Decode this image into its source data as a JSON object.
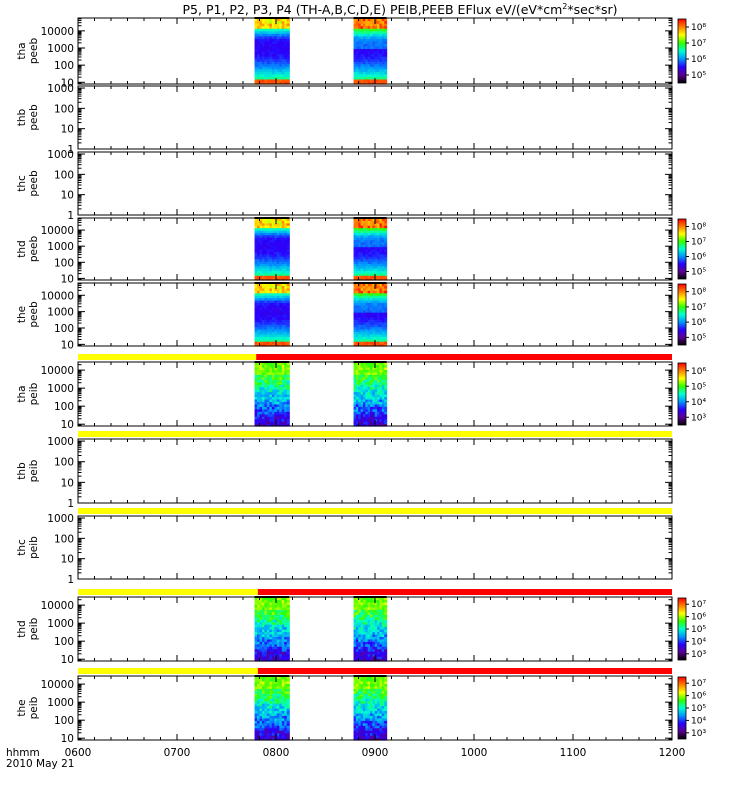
{
  "title": {
    "main": "P5, P1, P2, P3, P4 (TH-A,B,C,D,E) PEIB,PEEB EFlux eV/(eV*cm",
    "sup": "2",
    "tail": "*sec*sr)"
  },
  "footer": {
    "axis_name": "hhmm",
    "date": "2010 May 21"
  },
  "chart_data": {
    "type": "heatmap",
    "title": "P5, P1, P2, P3, P4 (TH-A,B,C,D,E) PEIB,PEEB EFlux eV/(eV*cm^2*sec*sr)",
    "x": {
      "ticks": [
        "0600",
        "0700",
        "0800",
        "0900",
        "1000",
        "1100",
        "1200"
      ],
      "range": [
        "0600",
        "1200"
      ],
      "label": "hhmm",
      "date": "2010 May 21"
    },
    "bursts": [
      {
        "start": "0747",
        "end": "0808"
      },
      {
        "start": "0847",
        "end": "0907"
      }
    ],
    "panels": [
      {
        "id": "tha_peeb",
        "label_lines": [
          "tha",
          "peeb"
        ],
        "y_ticks": [
          "10",
          "100",
          "1000",
          "10000"
        ],
        "y_log_range": [
          0.9,
          4.75
        ],
        "has_data": true,
        "colorbar": [
          "10⁵",
          "10⁶",
          "10⁷",
          "10⁸"
        ],
        "palette": "electron"
      },
      {
        "id": "thb_peeb",
        "label_lines": [
          "thb",
          "peeb"
        ],
        "y_ticks": [
          "1",
          "10",
          "100",
          "1000"
        ],
        "y_log_range": [
          0,
          3.1
        ],
        "has_data": false,
        "colorbar": [],
        "palette": "none"
      },
      {
        "id": "thc_peeb",
        "label_lines": [
          "thc",
          "peeb"
        ],
        "y_ticks": [
          "1",
          "10",
          "100",
          "1000"
        ],
        "y_log_range": [
          0,
          3.1
        ],
        "has_data": false,
        "colorbar": [],
        "palette": "none"
      },
      {
        "id": "thd_peeb",
        "label_lines": [
          "thd",
          "peeb"
        ],
        "y_ticks": [
          "10",
          "100",
          "1000",
          "10000"
        ],
        "y_log_range": [
          0.9,
          4.75
        ],
        "has_data": true,
        "colorbar": [
          "10⁵",
          "10⁶",
          "10⁷",
          "10⁸"
        ],
        "palette": "electron"
      },
      {
        "id": "the_peeb",
        "label_lines": [
          "the",
          "peeb"
        ],
        "y_ticks": [
          "10",
          "100",
          "1000",
          "10000"
        ],
        "y_log_range": [
          0.9,
          4.75
        ],
        "has_data": true,
        "colorbar": [
          "10⁵",
          "10⁶",
          "10⁷",
          "10⁸"
        ],
        "palette": "electron"
      },
      {
        "id": "tha_peib",
        "label_lines": [
          "tha",
          "peib"
        ],
        "y_ticks": [
          "10",
          "100",
          "1000",
          "10000"
        ],
        "y_log_range": [
          0.9,
          4.45
        ],
        "has_data": true,
        "colorbar": [
          "10³",
          "10⁴",
          "10⁵",
          "10⁶"
        ],
        "palette": "ion"
      },
      {
        "id": "thb_peib",
        "label_lines": [
          "thb",
          "peib"
        ],
        "y_ticks": [
          "1",
          "10",
          "100",
          "1000"
        ],
        "y_log_range": [
          0,
          3.1
        ],
        "has_data": false,
        "colorbar": [],
        "palette": "none"
      },
      {
        "id": "thc_peib",
        "label_lines": [
          "thc",
          "peib"
        ],
        "y_ticks": [
          "1",
          "10",
          "100",
          "1000"
        ],
        "y_log_range": [
          0,
          3.1
        ],
        "has_data": false,
        "colorbar": [],
        "palette": "none"
      },
      {
        "id": "thd_peib",
        "label_lines": [
          "thd",
          "peib"
        ],
        "y_ticks": [
          "10",
          "100",
          "1000",
          "10000"
        ],
        "y_log_range": [
          0.9,
          4.45
        ],
        "has_data": true,
        "colorbar": [
          "10³",
          "10⁴",
          "10⁵",
          "10⁶",
          "10⁷"
        ],
        "palette": "ion"
      },
      {
        "id": "the_peib",
        "label_lines": [
          "the",
          "peib"
        ],
        "y_ticks": [
          "10",
          "100",
          "1000",
          "10000"
        ],
        "y_log_range": [
          0.9,
          4.45
        ],
        "has_data": true,
        "colorbar": [
          "10³",
          "10⁴",
          "10⁵",
          "10⁶",
          "10⁷"
        ],
        "palette": "ion"
      }
    ],
    "mode_bars": [
      {
        "above_panel": "tha_peib",
        "segments": [
          {
            "from": "0600",
            "to": "0748",
            "color": "#ffff00"
          },
          {
            "from": "0748",
            "to": "1200",
            "color": "#ff0000"
          }
        ]
      },
      {
        "above_panel": "thb_peib",
        "segments": [
          {
            "from": "0600",
            "to": "1200",
            "color": "#ffff00"
          }
        ]
      },
      {
        "above_panel": "thc_peib",
        "segments": [
          {
            "from": "0600",
            "to": "1200",
            "color": "#ffff00"
          }
        ]
      },
      {
        "above_panel": "thd_peib",
        "segments": [
          {
            "from": "0600",
            "to": "0749",
            "color": "#ffff00"
          },
          {
            "from": "0749",
            "to": "1200",
            "color": "#ff0000"
          }
        ]
      },
      {
        "above_panel": "the_peib",
        "segments": [
          {
            "from": "0600",
            "to": "0749",
            "color": "#ffff00"
          },
          {
            "from": "0749",
            "to": "1200",
            "color": "#ff0000"
          }
        ]
      }
    ],
    "colors": {
      "colorbar_stops": [
        "#000000",
        "#5a0090",
        "#2a00ff",
        "#0096ff",
        "#00ffd0",
        "#30ff00",
        "#ffff00",
        "#ff8000",
        "#ff0000"
      ],
      "mode_fast": "#ff0000",
      "mode_slow": "#ffff00"
    }
  }
}
